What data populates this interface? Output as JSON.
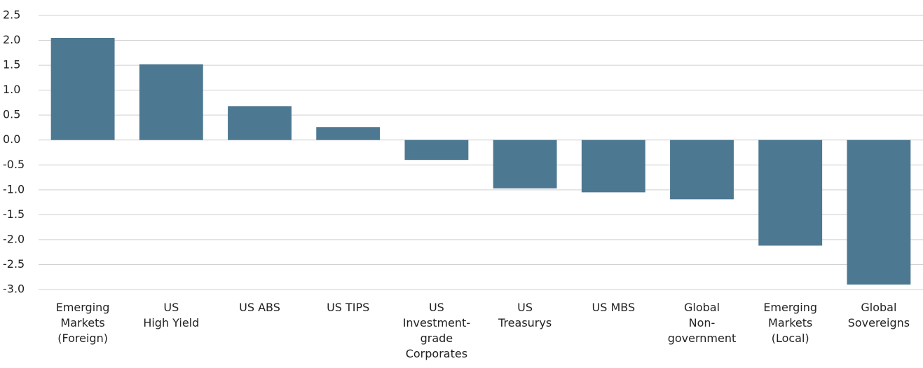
{
  "chart_data": {
    "type": "bar",
    "categories": [
      "Emerging\nMarkets\n(Foreign)",
      "US\nHigh Yield",
      "US ABS",
      "US TIPS",
      "US\nInvestment-\ngrade\nCorporates",
      "US\nTreasurys",
      "US MBS",
      "Global\nNon-\ngovernment",
      "Emerging\nMarkets\n(Local)",
      "Global\nSovereigns"
    ],
    "values": [
      2.05,
      1.52,
      0.68,
      0.26,
      -0.4,
      -0.97,
      -1.05,
      -1.19,
      -2.12,
      -2.9
    ],
    "color": "#4d7891",
    "ylim": [
      -3.0,
      2.5
    ],
    "yticks": [
      2.5,
      {
        "value": 2,
        "label": "2.0"
      },
      1.5,
      {
        "value": 1,
        "label": "1.0"
      },
      0.5,
      {
        "value": 0,
        "label": "0.0"
      },
      -0.5,
      {
        "value": -1,
        "label": "-1.0"
      },
      -1.5,
      {
        "value": -2,
        "label": "-2.0"
      },
      -2.5,
      {
        "value": -3,
        "label": "-3.0"
      }
    ],
    "grid": true
  }
}
